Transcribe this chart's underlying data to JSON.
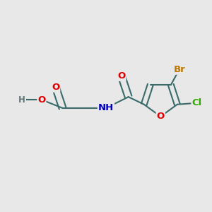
{
  "background_color": "#e8e8e8",
  "bond_color": "#3a6b6b",
  "bond_width": 1.5,
  "atom_colors": {
    "O": "#dd0000",
    "N": "#0000bb",
    "Br": "#bb7700",
    "Cl": "#33aa00",
    "H": "#607878",
    "C": "#3a6b6b"
  },
  "font_size": 9.5,
  "fig_width": 3.0,
  "fig_height": 3.0,
  "dpi": 100
}
